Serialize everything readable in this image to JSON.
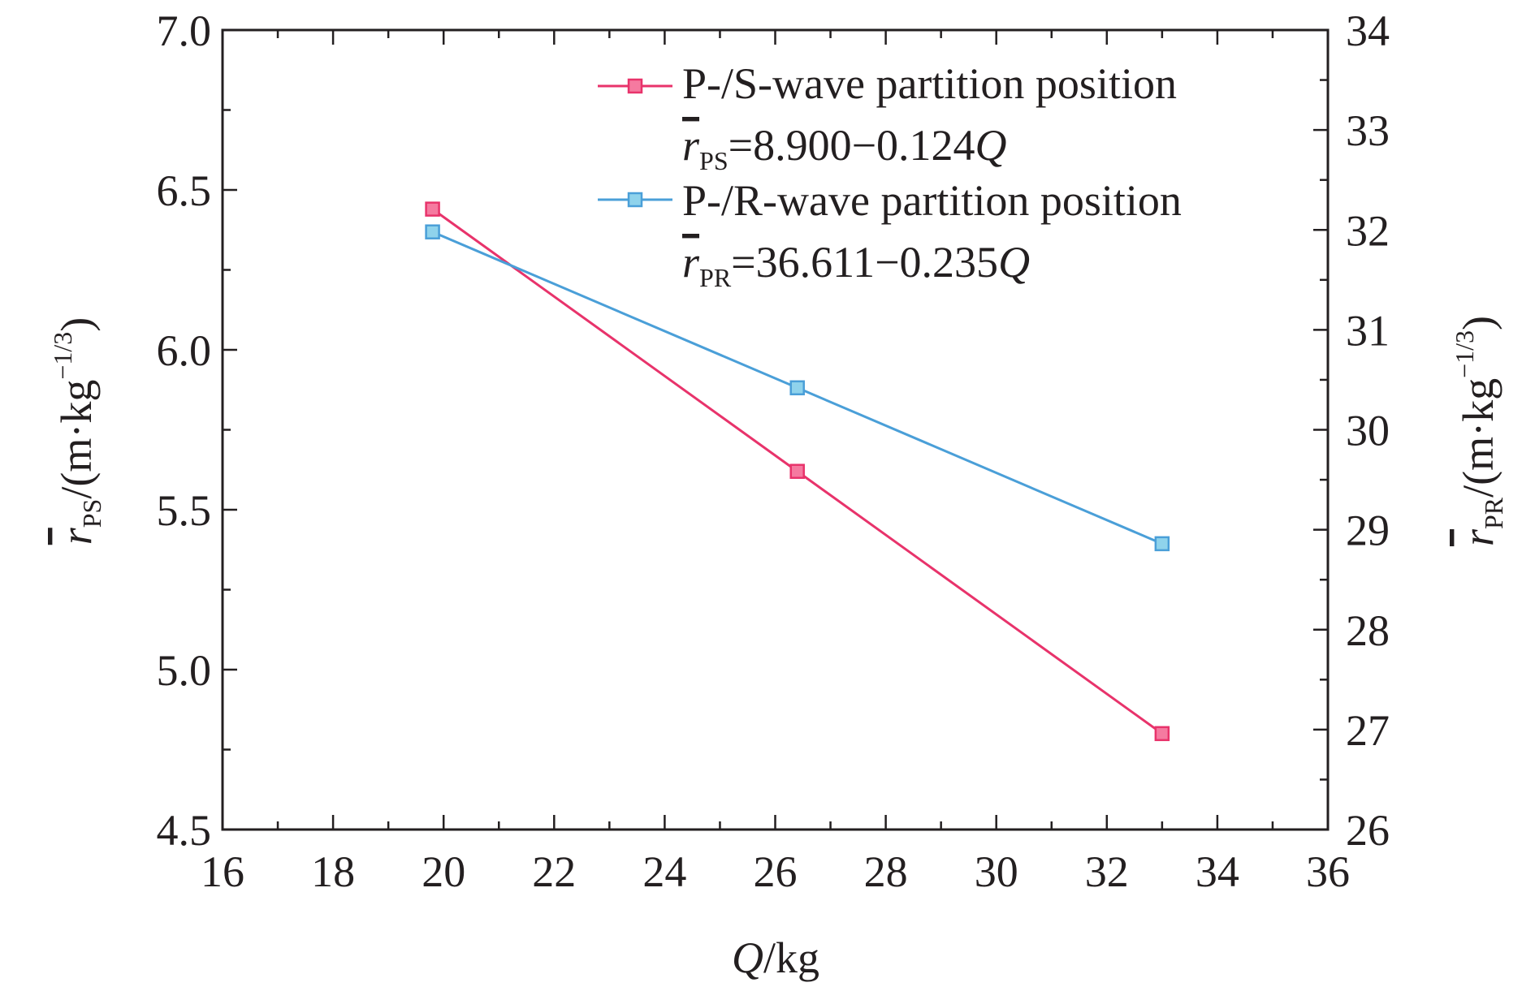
{
  "chart_data": {
    "type": "line",
    "x": [
      19.8,
      26.4,
      33.0
    ],
    "xlim": [
      16,
      36
    ],
    "x_major_ticks": [
      16,
      18,
      20,
      22,
      24,
      26,
      28,
      30,
      32,
      34,
      36
    ],
    "x_tick_labels": [
      "16",
      "18",
      "20",
      "22",
      "24",
      "26",
      "28",
      "30",
      "32",
      "34",
      "36"
    ],
    "xlabel": {
      "italic": "Q",
      "normal": "/kg"
    },
    "y_left": {
      "lim": [
        4.5,
        7.0
      ],
      "ticks": [
        4.5,
        5.0,
        5.5,
        6.0,
        6.5,
        7.0
      ],
      "tick_labels": [
        "4.5",
        "5.0",
        "5.5",
        "6.0",
        "6.5",
        "7.0"
      ],
      "label": {
        "var": "r",
        "sub": "PS",
        "rest": "/(m·kg",
        "sup": "−1/3",
        "close": ")"
      }
    },
    "y_right": {
      "lim": [
        26,
        34
      ],
      "ticks": [
        26,
        27,
        28,
        29,
        30,
        31,
        32,
        33,
        34
      ],
      "tick_labels": [
        "26",
        "27",
        "28",
        "29",
        "30",
        "31",
        "32",
        "33",
        "34"
      ],
      "label": {
        "var": "r",
        "sub": "PR",
        "rest": "/(m·kg",
        "sup": "−1/3",
        "close": ")"
      }
    },
    "series": [
      {
        "name": "P-/S-wave partition position",
        "axis": "left",
        "values": [
          6.44,
          5.62,
          4.8
        ],
        "color": "#e8336b",
        "marker_fill": "#f57aa0",
        "equation": {
          "var": "r",
          "sub": "PS",
          "rest": "=8.900−0.124",
          "ivar": "Q"
        }
      },
      {
        "name": "P-/R-wave partition position",
        "axis": "right",
        "values": [
          31.98,
          30.42,
          28.86
        ],
        "color": "#4a9fd8",
        "marker_fill": "#8fd3ec",
        "equation": {
          "var": "r",
          "sub": "PR",
          "rest": "=36.611−0.235",
          "ivar": "Q"
        }
      }
    ],
    "legend_position": "top-right",
    "grid": false
  }
}
